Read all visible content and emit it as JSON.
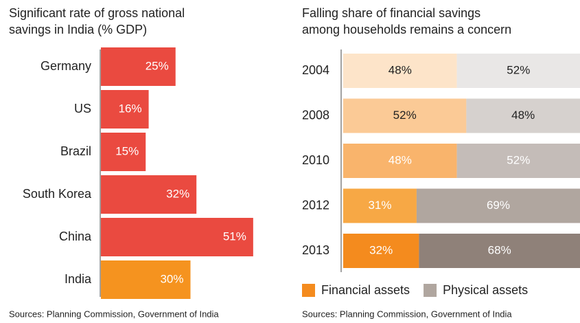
{
  "chart_data": [
    {
      "type": "hbar",
      "title": [
        "Significant rate of gross national",
        "savings in India (% GDP)"
      ],
      "source": "Sources: Planning Commission, Government of India",
      "categories": [
        "Germany",
        "US",
        "Brazil",
        "South Korea",
        "China",
        "India"
      ],
      "values": [
        25,
        16,
        15,
        32,
        51,
        30
      ],
      "value_labels": [
        "25%",
        "16%",
        "15%",
        "32%",
        "51%",
        "30%"
      ],
      "colors": [
        "#ea4a40",
        "#ea4a40",
        "#ea4a40",
        "#ea4a40",
        "#ea4a40",
        "#f5931f"
      ]
    },
    {
      "type": "stacked100",
      "title": [
        "Falling share of financial savings",
        "among households remains a concern"
      ],
      "source": "Sources: Planning Commission, Government of India",
      "categories": [
        "2004",
        "2008",
        "2010",
        "2012",
        "2013"
      ],
      "series": [
        {
          "name": "Financial assets",
          "color": "#f48b1e",
          "colors": [
            "#fde4c9",
            "#fbca96",
            "#f9b46c",
            "#f7a845",
            "#f48b1e"
          ],
          "values": [
            48,
            52,
            48,
            31,
            32
          ],
          "value_labels": [
            "48%",
            "52%",
            "48%",
            "31%",
            "32%"
          ]
        },
        {
          "name": "Physical assets",
          "color": "#b0a69f",
          "colors": [
            "#e9e7e6",
            "#d6d1ce",
            "#c4bcb8",
            "#b0a69f",
            "#8f8179"
          ],
          "values": [
            52,
            48,
            52,
            69,
            68
          ],
          "value_labels": [
            "52%",
            "48%",
            "52%",
            "69%",
            "68%"
          ]
        }
      ]
    }
  ]
}
